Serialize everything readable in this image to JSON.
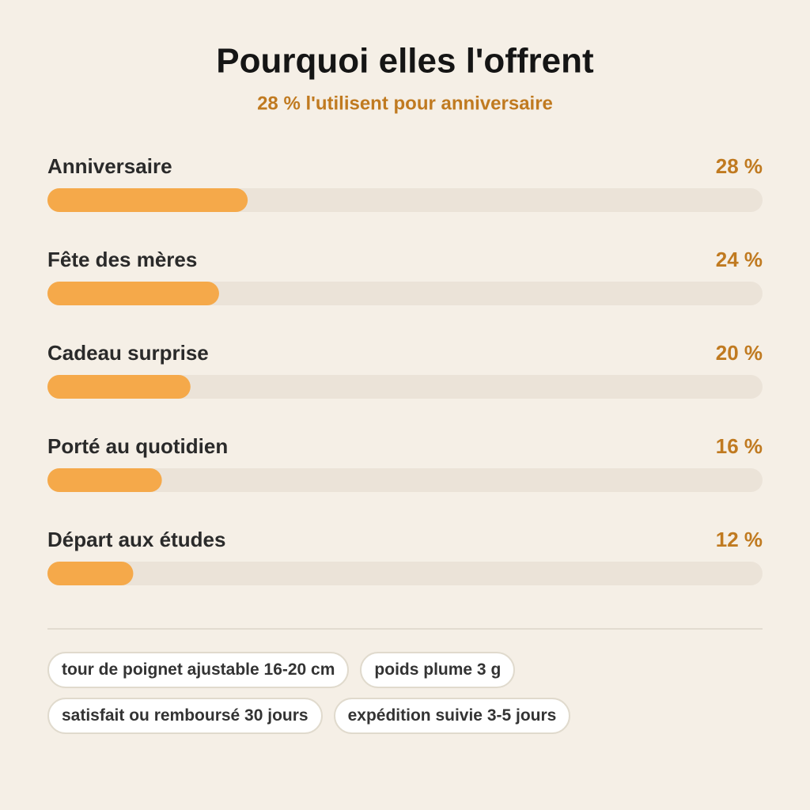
{
  "chart_data": {
    "type": "progress-bar",
    "title": "Pourquoi elles l'offrent",
    "subtitle": "28 % l'utilisent pour anniversaire",
    "categories": [
      "Anniversaire",
      "Fête des mères",
      "Cadeau surprise",
      "Porté au quotidien",
      "Départ aux études"
    ],
    "values": [
      28,
      24,
      20,
      16,
      12
    ],
    "value_labels": [
      "28 %",
      "24 %",
      "20 %",
      "16 %",
      "12 %"
    ],
    "color": "#f5a94a",
    "xlim": [
      0,
      100
    ]
  },
  "tags": [
    "tour de poignet ajustable 16-20 cm",
    "poids plume 3 g",
    "satisfait ou remboursé 30 jours",
    "expédition suivie 3-5 jours"
  ]
}
